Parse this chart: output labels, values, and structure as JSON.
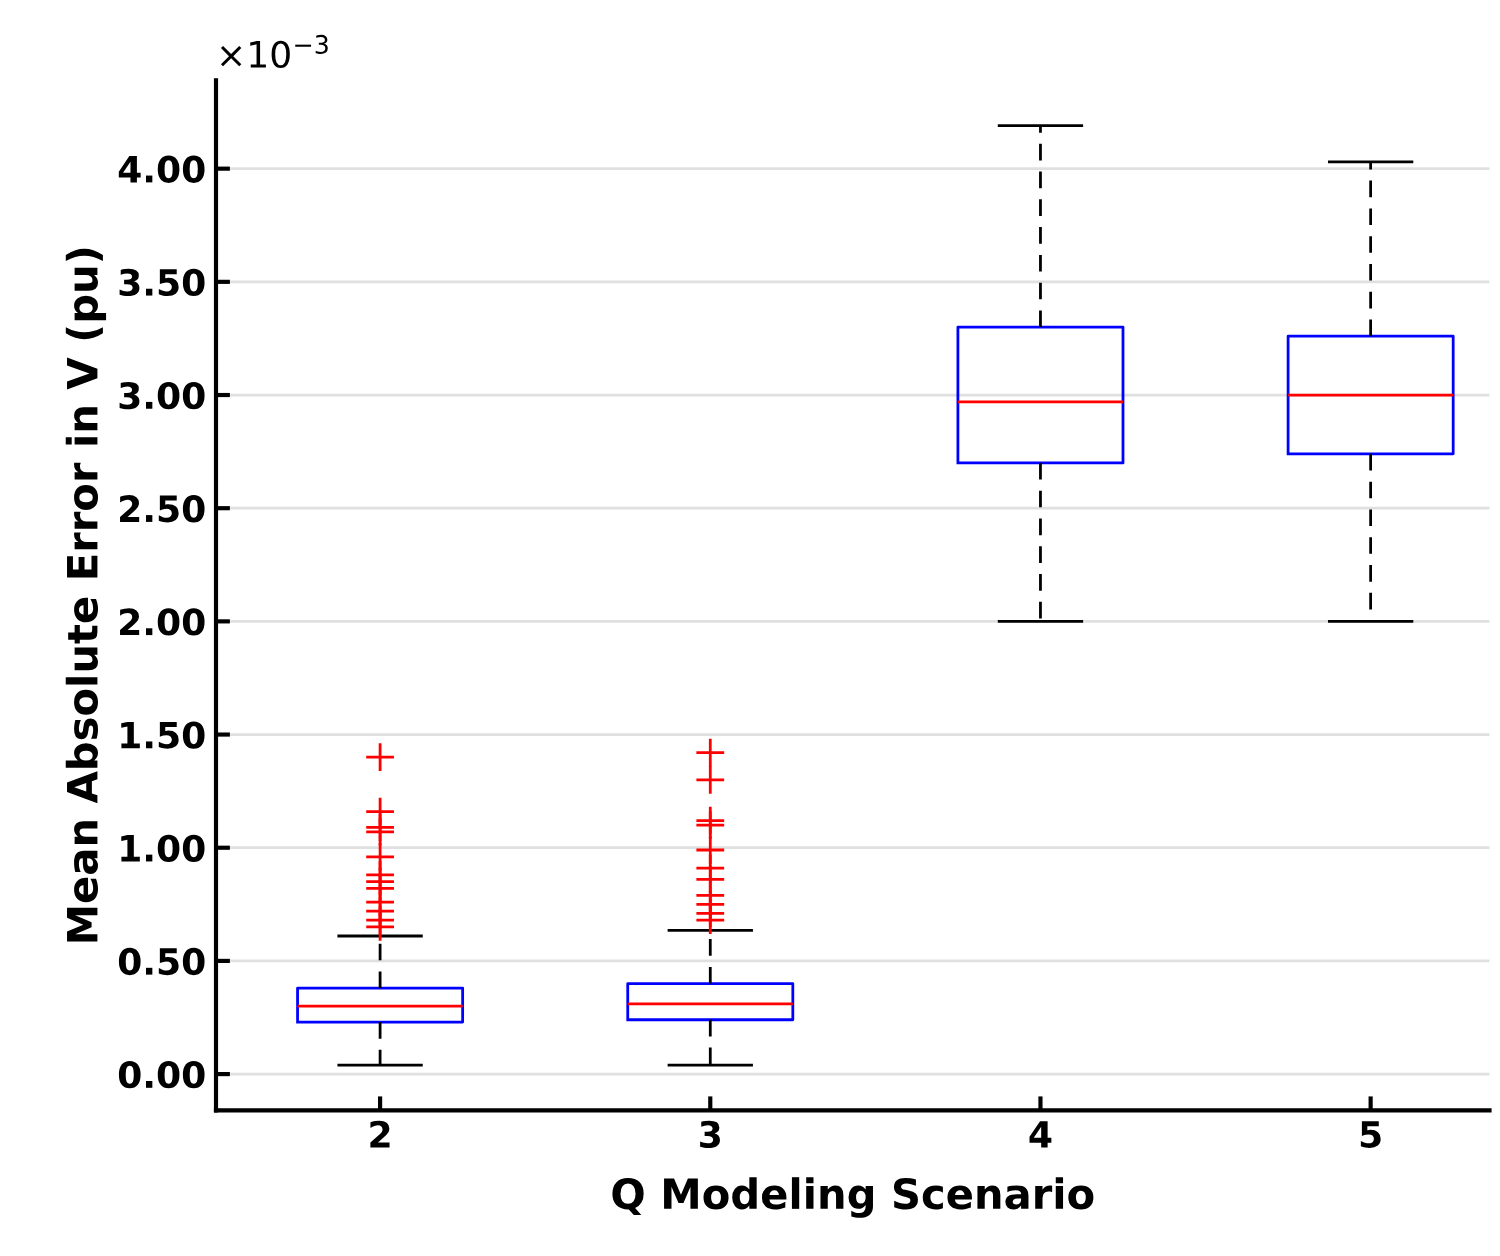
{
  "chart_data": {
    "type": "box",
    "xlabel": "Q Modeling Scenario",
    "ylabel": "Mean Absolute Error in V (pu)",
    "annotations": [
      "×10$^{−3}$"
    ],
    "categories": [
      "2",
      "3",
      "4",
      "5"
    ],
    "color": "#0000ff",
    "marker": "cross",
    "grid": "y",
    "boxes": [
      {
        "low": 0.04,
        "q1": 0.23,
        "median": 0.3,
        "q3": 0.38,
        "high": 0.61,
        "outliers": [
          1.4,
          1.16,
          1.09,
          1.07,
          0.96,
          0.88,
          0.85,
          0.82,
          0.76,
          0.72,
          0.68,
          0.65
        ]
      },
      {
        "low": 0.04,
        "q1": 0.24,
        "median": 0.31,
        "q3": 0.4,
        "high": 0.635,
        "outliers": [
          1.42,
          1.3,
          1.12,
          1.1,
          0.99,
          0.91,
          0.86,
          0.79,
          0.75,
          0.71,
          0.68
        ]
      },
      {
        "low": 2.0,
        "q1": 2.7,
        "median": 2.97,
        "q3": 3.3,
        "high": 4.19
      },
      {
        "low": 2.0,
        "q1": 2.74,
        "median": 3.0,
        "q3": 3.26,
        "high": 4.03
      }
    ],
    "ylim": [
      -0.16,
      4.39
    ],
    "yticks": [
      {
        "value": 0,
        "label": "0.00"
      },
      {
        "value": 0.5,
        "label": "0.50"
      },
      {
        "value": 1,
        "label": "1.00"
      },
      {
        "value": 1.5,
        "label": "1.50"
      },
      {
        "value": 2,
        "label": "2.00"
      },
      {
        "value": 2.5,
        "label": "2.50"
      },
      {
        "value": 3,
        "label": "3.00"
      },
      {
        "value": 3.5,
        "label": "3.50"
      },
      {
        "value": 4,
        "label": "4.00"
      }
    ]
  }
}
